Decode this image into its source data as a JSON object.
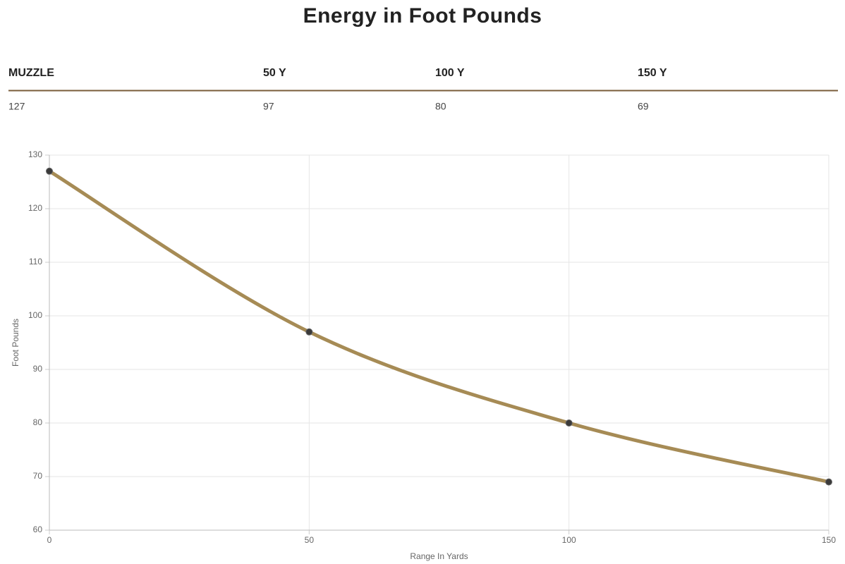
{
  "title": "Energy in Foot Pounds",
  "table": {
    "headers": [
      "MUZZLE",
      "50 Y",
      "100 Y",
      "150 Y"
    ],
    "rows": [
      [
        "127",
        "97",
        "80",
        "69"
      ]
    ]
  },
  "chart_data": {
    "type": "line",
    "x": [
      0,
      50,
      100,
      150
    ],
    "series": [
      {
        "name": "Energy",
        "color": "#a68b55",
        "marker_color": "#3a3a3a",
        "values": [
          127,
          97,
          80,
          69
        ]
      }
    ],
    "xlim": [
      0,
      150
    ],
    "xticks": [
      0,
      50,
      100,
      150
    ],
    "ylim": [
      60,
      130
    ],
    "yticks": [
      60,
      70,
      80,
      90,
      100,
      110,
      120,
      130
    ],
    "xlabel": "Range In Yards",
    "ylabel": "Foot Pounds",
    "grid": true
  }
}
